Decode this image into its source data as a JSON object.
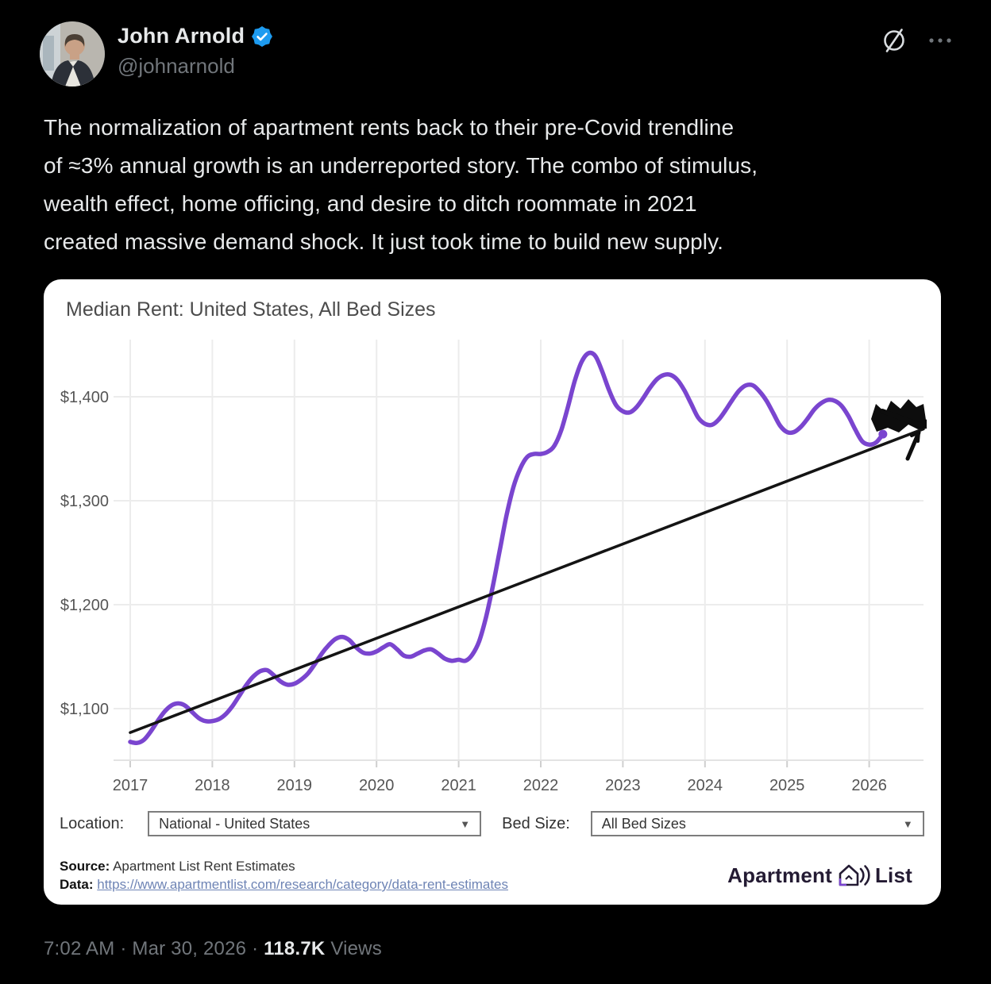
{
  "header": {
    "name": "John Arnold",
    "handle": "@johnarnold"
  },
  "icons": {
    "caret": "▼"
  },
  "tweet": {
    "text": "The normalization of apartment rents back to their pre-Covid trendline\nof ≈3% annual growth is an underreported story. The combo of stimulus,\nwealth effect, home officing, and desire to ditch roommate in 2021\ncreated massive demand shock. It just took time to build new supply."
  },
  "chart_card": {
    "title": "Median Rent: United States, All Bed Sizes",
    "controls": {
      "location_label": "Location:",
      "location_value": "National - United States",
      "bed_size_label": "Bed Size:",
      "bed_size_value": "All Bed Sizes"
    },
    "source_label": "Source:",
    "source_text": "Apartment List Rent Estimates",
    "data_label": "Data:",
    "data_link": "https://www.apartmentlist.com/research/category/data-rent-estimates",
    "logo": {
      "left": "Apartment",
      "right": "List"
    }
  },
  "footer": {
    "meta": "7:02 AM · Mar 30, 2026",
    "dot": "·",
    "views_count": "118.7K",
    "views_label": "Views"
  },
  "chart_data": {
    "type": "line",
    "title": "Median Rent: United States, All Bed Sizes",
    "unit": "USD per month",
    "frequency": "monthly",
    "grid": true,
    "legend": false,
    "xlim": [
      2016.85,
      2026.75
    ],
    "ylim": [
      1040,
      1460
    ],
    "y_ticks": [
      {
        "v": 1400,
        "label": "$1,400"
      },
      {
        "v": 1300,
        "label": "$1,300"
      },
      {
        "v": 1200,
        "label": "$1,200"
      },
      {
        "v": 1100,
        "label": "$1,100"
      }
    ],
    "x_ticks": [
      {
        "v": 2017,
        "label": "2017"
      },
      {
        "v": 2018,
        "label": "2018"
      },
      {
        "v": 2019,
        "label": "2019"
      },
      {
        "v": 2020,
        "label": "2020"
      },
      {
        "v": 2021,
        "label": "2021"
      },
      {
        "v": 2022,
        "label": "2022"
      },
      {
        "v": 2023,
        "label": "2023"
      },
      {
        "v": 2024,
        "label": "2024"
      },
      {
        "v": 2025,
        "label": "2025"
      },
      {
        "v": 2026,
        "label": "2026"
      }
    ],
    "series": [
      {
        "name": "Median rent estimate",
        "color": "#7a45cf",
        "start_year": 2017,
        "start_month": 1,
        "end_label": "2026-03",
        "values": [
          1068,
          1067,
          1070,
          1078,
          1088,
          1097,
          1103,
          1105,
          1103,
          1097,
          1091,
          1088,
          1088,
          1090,
          1095,
          1103,
          1113,
          1123,
          1131,
          1136,
          1137,
          1132,
          1126,
          1123,
          1124,
          1128,
          1134,
          1143,
          1153,
          1161,
          1167,
          1169,
          1166,
          1159,
          1154,
          1153,
          1155,
          1159,
          1162,
          1157,
          1151,
          1150,
          1153,
          1156,
          1157,
          1153,
          1148,
          1146,
          1147,
          1146,
          1152,
          1165,
          1188,
          1218,
          1252,
          1286,
          1313,
          1331,
          1342,
          1345,
          1345,
          1347,
          1353,
          1368,
          1391,
          1416,
          1434,
          1442,
          1439,
          1424,
          1406,
          1392,
          1386,
          1385,
          1390,
          1399,
          1409,
          1417,
          1421,
          1421,
          1416,
          1406,
          1393,
          1380,
          1374,
          1373,
          1378,
          1387,
          1397,
          1406,
          1411,
          1411,
          1405,
          1396,
          1384,
          1372,
          1366,
          1366,
          1371,
          1379,
          1388,
          1394,
          1397,
          1396,
          1391,
          1381,
          1368,
          1357,
          1354,
          1356,
          1364
        ]
      },
      {
        "name": "Pre-Covid ~3% growth trendline",
        "color": "#141414",
        "x": [
          2017.0,
          2026.66
        ],
        "values": [
          1077,
          1369
        ]
      }
    ],
    "end_dot": {
      "x_year": 2026.167,
      "value": 1364
    },
    "annotation": {
      "type": "hand-drawn scribble with arrow",
      "description": "black scribble blob with arrow pointing at the spot where the rent line returns to the trendline",
      "x_year": 2026.35,
      "value": 1385
    }
  }
}
